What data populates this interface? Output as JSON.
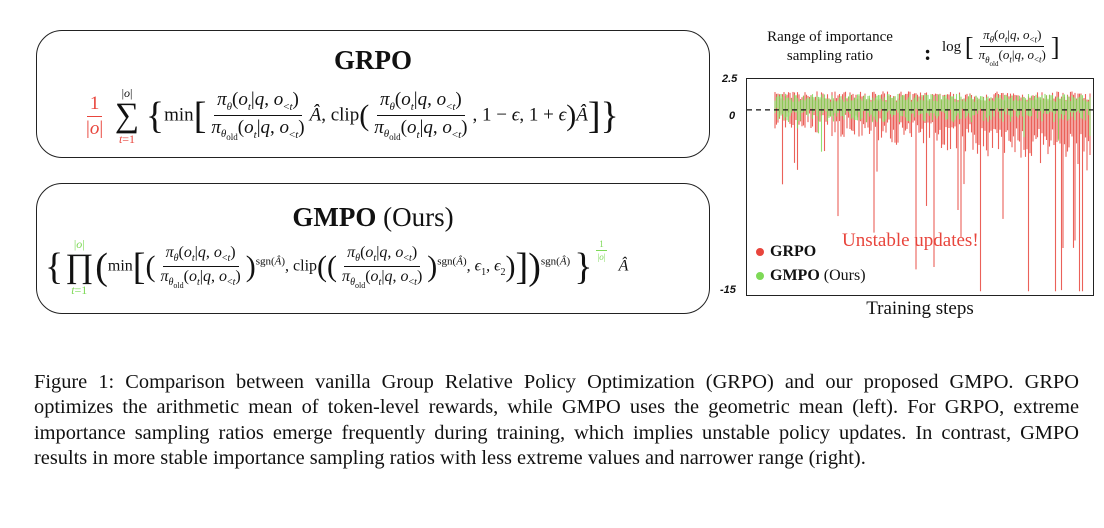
{
  "left_panel": {
    "grpo_title": "GRPO",
    "gmpo_title": "GMPO",
    "gmpo_title_suffix": "(Ours)"
  },
  "chart_data": {
    "type": "line",
    "header_text_line1": "Range of importance",
    "header_text_line2": "sampling ratio",
    "y_axis_expression": "log [ πθ(ot|q,o<t) / πθold(ot|q,o<t) ]",
    "xlabel": "Training steps",
    "ylabel": "",
    "yticks": [
      "2.5",
      "0",
      "-15"
    ],
    "ylim": [
      -15,
      2.5
    ],
    "reference_line": 0,
    "series": [
      {
        "name": "GRPO",
        "color": "#e8453c",
        "typical_range": [
          -4.5,
          1.5
        ],
        "extreme_min": -14.5
      },
      {
        "name": "GMPO",
        "legend_suffix": "(Ours)",
        "color": "#7ed957",
        "typical_range": [
          -1.0,
          1.3
        ],
        "extreme_min": -3.5
      }
    ],
    "annotation": "Unstable updates!"
  },
  "caption": "Figure 1: Comparison between vanilla Group Relative Policy Optimization (GRPO) and our proposed GMPO. GRPO optimizes the arithmetic mean of token-level rewards, while GMPO uses the geometric mean (left). For GRPO, extreme importance sampling ratios emerge frequently during training, which implies unstable policy updates. In contrast, GMPO results in more stable importance sampling ratios with less extreme values and narrower range (right)."
}
